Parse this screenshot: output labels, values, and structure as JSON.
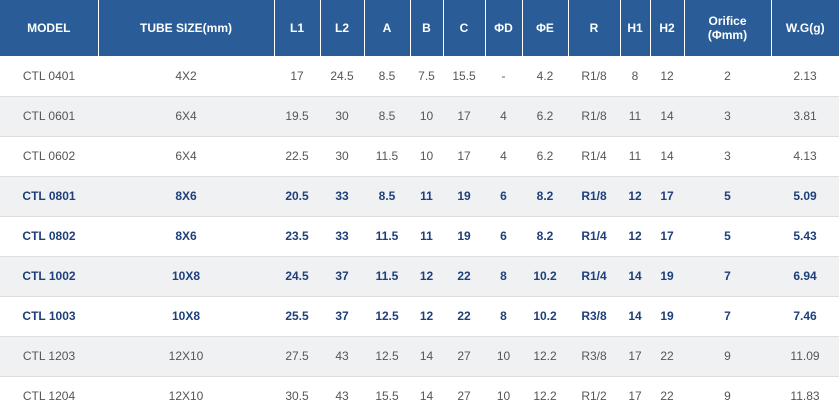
{
  "table": {
    "headers": [
      "MODEL",
      "TUBE SIZE(mm)",
      "L1",
      "L2",
      "A",
      "B",
      "C",
      "ΦD",
      "ΦE",
      "R",
      "H1",
      "H2",
      "Orifice (Φmm)",
      "W.G(g)"
    ],
    "orifice_header": {
      "line1": "Orifice",
      "line2": "(Φmm)"
    },
    "rows": [
      [
        "CTL 0401",
        "4X2",
        "17",
        "24.5",
        "8.5",
        "7.5",
        "15.5",
        "-",
        "4.2",
        "R1/8",
        "8",
        "12",
        "2",
        "2.13"
      ],
      [
        "CTL 0601",
        "6X4",
        "19.5",
        "30",
        "8.5",
        "10",
        "17",
        "4",
        "6.2",
        "R1/8",
        "11",
        "14",
        "3",
        "3.81"
      ],
      [
        "CTL 0602",
        "6X4",
        "22.5",
        "30",
        "11.5",
        "10",
        "17",
        "4",
        "6.2",
        "R1/4",
        "11",
        "14",
        "3",
        "4.13"
      ],
      [
        "CTL 0801",
        "8X6",
        "20.5",
        "33",
        "8.5",
        "11",
        "19",
        "6",
        "8.2",
        "R1/8",
        "12",
        "17",
        "5",
        "5.09"
      ],
      [
        "CTL 0802",
        "8X6",
        "23.5",
        "33",
        "11.5",
        "11",
        "19",
        "6",
        "8.2",
        "R1/4",
        "12",
        "17",
        "5",
        "5.43"
      ],
      [
        "CTL 1002",
        "10X8",
        "24.5",
        "37",
        "11.5",
        "12",
        "22",
        "8",
        "10.2",
        "R1/4",
        "14",
        "19",
        "7",
        "6.94"
      ],
      [
        "CTL 1003",
        "10X8",
        "25.5",
        "37",
        "12.5",
        "12",
        "22",
        "8",
        "10.2",
        "R3/8",
        "14",
        "19",
        "7",
        "7.46"
      ],
      [
        "CTL 1203",
        "12X10",
        "27.5",
        "43",
        "12.5",
        "14",
        "27",
        "10",
        "12.2",
        "R3/8",
        "17",
        "22",
        "9",
        "11.09"
      ],
      [
        "CTL 1204",
        "12X10",
        "30.5",
        "43",
        "15.5",
        "14",
        "27",
        "10",
        "12.2",
        "R1/2",
        "17",
        "22",
        "9",
        "11.83"
      ]
    ],
    "highlighted_rows": [
      "CTL 0801",
      "CTL 0802",
      "CTL 1002",
      "CTL 1003"
    ],
    "colors": {
      "header_bg": "#2a5d98",
      "header_text": "#ffffff",
      "highlight_text": "#1e3f7a",
      "normal_text": "#555555",
      "alt_row_bg": "#f0f1f3"
    }
  }
}
